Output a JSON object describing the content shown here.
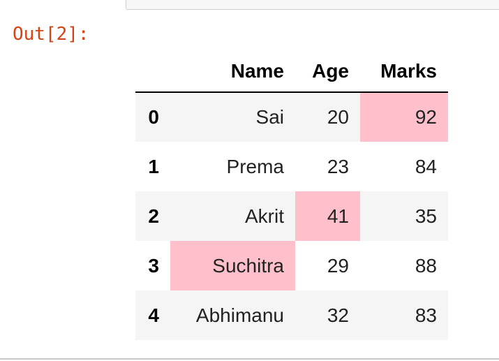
{
  "cell": {
    "prompt": "Out[2]:"
  },
  "table": {
    "columns": [
      "",
      "Name",
      "Age",
      "Marks"
    ],
    "highlight_color": "#ffc0cb",
    "rows": [
      {
        "index": "0",
        "Name": "Sai",
        "Age": "20",
        "Marks": "92",
        "highlight": "Marks"
      },
      {
        "index": "1",
        "Name": "Prema",
        "Age": "23",
        "Marks": "84",
        "highlight": ""
      },
      {
        "index": "2",
        "Name": "Akrit",
        "Age": "41",
        "Marks": "35",
        "highlight": "Age"
      },
      {
        "index": "3",
        "Name": "Suchitra",
        "Age": "29",
        "Marks": "88",
        "highlight": "Name"
      },
      {
        "index": "4",
        "Name": "Abhimanu",
        "Age": "32",
        "Marks": "83",
        "highlight": ""
      }
    ]
  }
}
